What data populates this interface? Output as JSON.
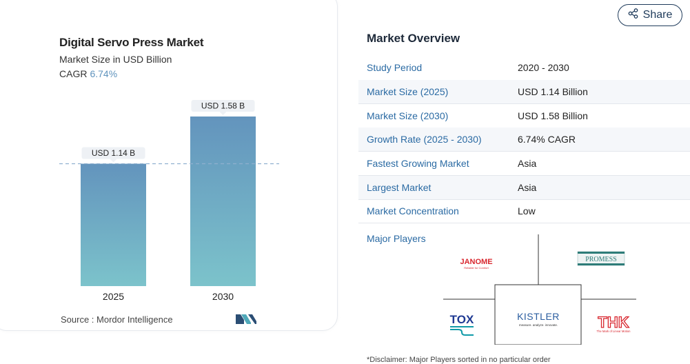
{
  "chart_card": {
    "title": "Digital Servo Press Market",
    "subtitle": "Market Size in USD Billion",
    "cagr_label": "CAGR",
    "cagr_value": "6.74%",
    "source": "Source :  Mordor Intelligence"
  },
  "chart_data": {
    "type": "bar",
    "categories": [
      "2025",
      "2030"
    ],
    "values": [
      1.14,
      1.58
    ],
    "data_labels": [
      "USD 1.14 B",
      "USD 1.58 B"
    ],
    "ylim": [
      0,
      1.58
    ],
    "reference_line": 1.14,
    "colors": {
      "bar_top": "#6394bd",
      "bar_bottom": "#7cc3cb",
      "label_bg": "#eef1f5",
      "ref_line": "#8fb0cf"
    }
  },
  "share": {
    "label": "Share",
    "icon": "share-icon"
  },
  "overview": {
    "title": "Market Overview",
    "rows": [
      {
        "key": "Study Period",
        "value": "2020 - 2030"
      },
      {
        "key": "Market Size (2025)",
        "value": "USD 1.14 Billion"
      },
      {
        "key": "Market Size (2030)",
        "value": "USD 1.58 Billion"
      },
      {
        "key": "Growth Rate (2025 - 2030)",
        "value": "6.74% CAGR"
      },
      {
        "key": "Fastest Growing Market",
        "value": "Asia"
      },
      {
        "key": "Largest Market",
        "value": "Asia"
      },
      {
        "key": "Market Concentration",
        "value": "Low"
      }
    ]
  },
  "players": {
    "label": "Major Players",
    "logos": {
      "janome": {
        "name": "JANOME",
        "tagline": "Reliable for Comfort",
        "color": "#d8262e"
      },
      "promess": {
        "name": "PROMESS",
        "color": "#2d7c78"
      },
      "tox": {
        "name": "TOX",
        "color": "#1f3a93"
      },
      "kistler": {
        "name": "KISTLER",
        "tagline": "measure. analyze. innovate.",
        "color": "#2a5d9f"
      },
      "thk": {
        "name": "THK",
        "tagline": "The Mark of Linear Motion",
        "color": "#d8262e"
      }
    }
  },
  "disclaimer": "*Disclaimer: Major Players sorted in no particular order"
}
